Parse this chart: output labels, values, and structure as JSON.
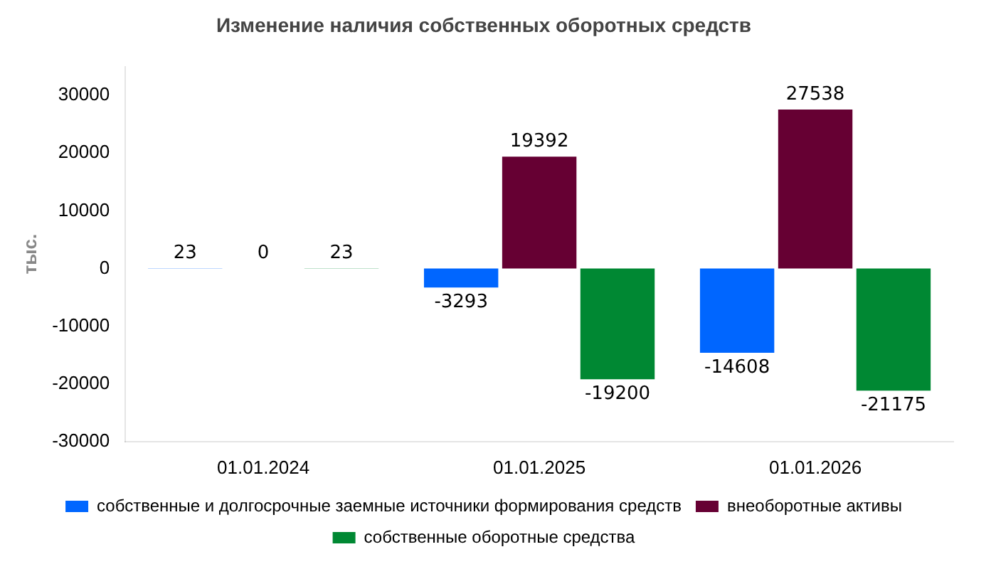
{
  "chart_data": {
    "type": "bar",
    "title": "Изменение наличия собственных оборотных средств",
    "ylabel": "тыс.",
    "categories": [
      "01.01.2024",
      "01.01.2025",
      "01.01.2026"
    ],
    "series": [
      {
        "name": "собственные и долгосрочные заемные источники формирования средств",
        "color": "#0066ff",
        "values": [
          23,
          -3293,
          -14608
        ]
      },
      {
        "name": "внеоборотные активы",
        "color": "#660033",
        "values": [
          0,
          19392,
          27538
        ]
      },
      {
        "name": "собственные оборотные средства",
        "color": "#008833",
        "values": [
          23,
          -19200,
          -21175
        ]
      }
    ],
    "ylim": [
      -30000,
      35000
    ],
    "yticks": [
      -30000,
      -20000,
      -10000,
      0,
      10000,
      20000,
      30000
    ],
    "data_labels": true,
    "legend": "bottom",
    "grid": false
  }
}
